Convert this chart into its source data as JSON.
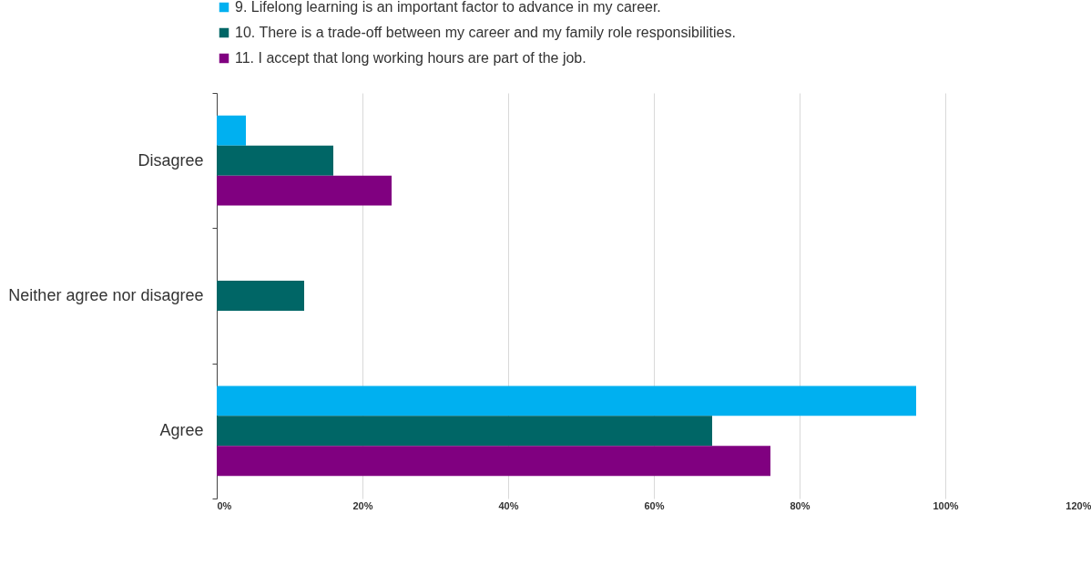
{
  "chart_data": {
    "type": "bar",
    "orientation": "horizontal",
    "categories": [
      "Disagree",
      "Neither agree nor disagree",
      "Agree"
    ],
    "series": [
      {
        "name": "9. Lifelong learning is an important factor to advance in my career.",
        "color": "#00b0f0",
        "values": [
          4,
          0,
          96
        ]
      },
      {
        "name": "10. There is a trade-off between my career and my family role responsibilities.",
        "color": "#006666",
        "values": [
          16,
          12,
          68
        ]
      },
      {
        "name": "11. I accept that long working hours are part of the job.",
        "color": "#800080",
        "values": [
          24,
          0,
          76
        ]
      }
    ],
    "xlim": [
      0,
      120
    ],
    "xticks": [
      {
        "value": 0,
        "label": "0%"
      },
      {
        "value": 20,
        "label": "20%"
      },
      {
        "value": 40,
        "label": "40%"
      },
      {
        "value": 60,
        "label": "60%"
      },
      {
        "value": 80,
        "label": "80%"
      },
      {
        "value": 100,
        "label": "100%"
      },
      {
        "value": 120,
        "label": "120%"
      }
    ],
    "grid": "x",
    "legend": "top"
  }
}
